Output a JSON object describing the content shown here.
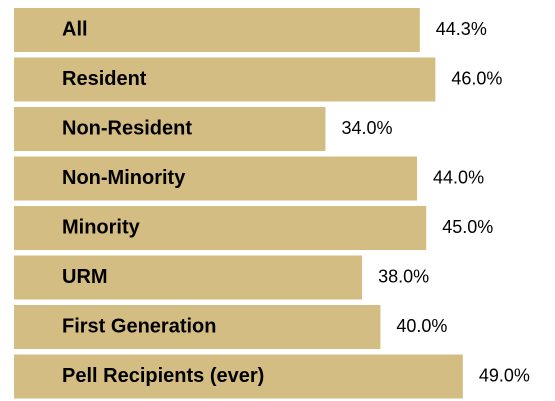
{
  "chart_data": {
    "type": "bar",
    "orientation": "horizontal",
    "categories": [
      "All",
      "Resident",
      "Non-Resident",
      "Non-Minority",
      "Minority",
      "URM",
      "First Generation",
      "Pell Recipients (ever)"
    ],
    "values": [
      44.3,
      46.0,
      34.0,
      44.0,
      45.0,
      38.0,
      40.0,
      49.0
    ],
    "value_labels": [
      "44.3%",
      "46.0%",
      "34.0%",
      "44.0%",
      "45.0%",
      "38.0%",
      "40.0%",
      "49.0%"
    ],
    "color": "#d4bd82"
  }
}
